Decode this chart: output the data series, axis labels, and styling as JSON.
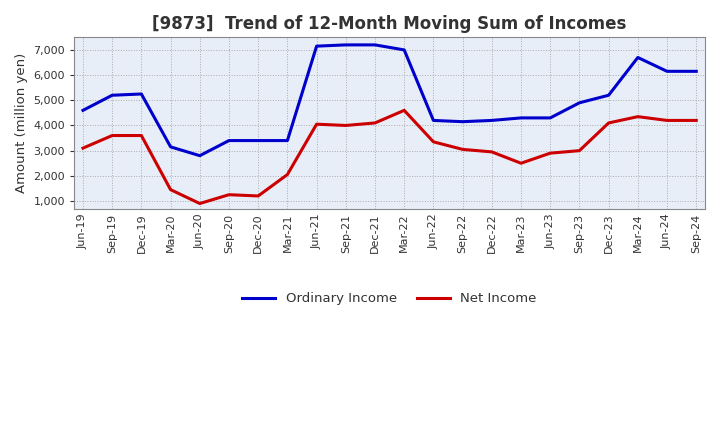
{
  "title": "[9873]  Trend of 12-Month Moving Sum of Incomes",
  "ylabel": "Amount (million yen)",
  "x_labels": [
    "Jun-19",
    "Sep-19",
    "Dec-19",
    "Mar-20",
    "Jun-20",
    "Sep-20",
    "Dec-20",
    "Mar-21",
    "Jun-21",
    "Sep-21",
    "Dec-21",
    "Mar-22",
    "Jun-22",
    "Sep-22",
    "Dec-22",
    "Mar-23",
    "Jun-23",
    "Sep-23",
    "Dec-23",
    "Mar-24",
    "Jun-24",
    "Sep-24"
  ],
  "ordinary_income": [
    4600,
    5200,
    5250,
    3150,
    2800,
    3400,
    3400,
    3400,
    7150,
    7200,
    7200,
    7000,
    4200,
    4150,
    4200,
    4300,
    4300,
    4900,
    5200,
    6700,
    6150,
    6150
  ],
  "net_income": [
    3100,
    3600,
    3600,
    1450,
    900,
    1250,
    1200,
    2050,
    4050,
    4000,
    4100,
    4600,
    3350,
    3050,
    2950,
    2500,
    2900,
    3000,
    4100,
    4350,
    4200,
    4200
  ],
  "ordinary_color": "#0000cc",
  "net_color": "#cc0000",
  "bg_color": "#ffffff",
  "plot_bg_color": "#e8eef8",
  "grid_color": "#aaaaaa",
  "spine_color": "#888888",
  "title_color": "#333333",
  "ylim": [
    700,
    7500
  ],
  "yticks": [
    1000,
    2000,
    3000,
    4000,
    5000,
    6000,
    7000
  ],
  "legend_labels": [
    "Ordinary Income",
    "Net Income"
  ],
  "line_width": 2.2,
  "title_fontsize": 12,
  "ylabel_fontsize": 9.5,
  "tick_fontsize": 8,
  "legend_fontsize": 9.5
}
